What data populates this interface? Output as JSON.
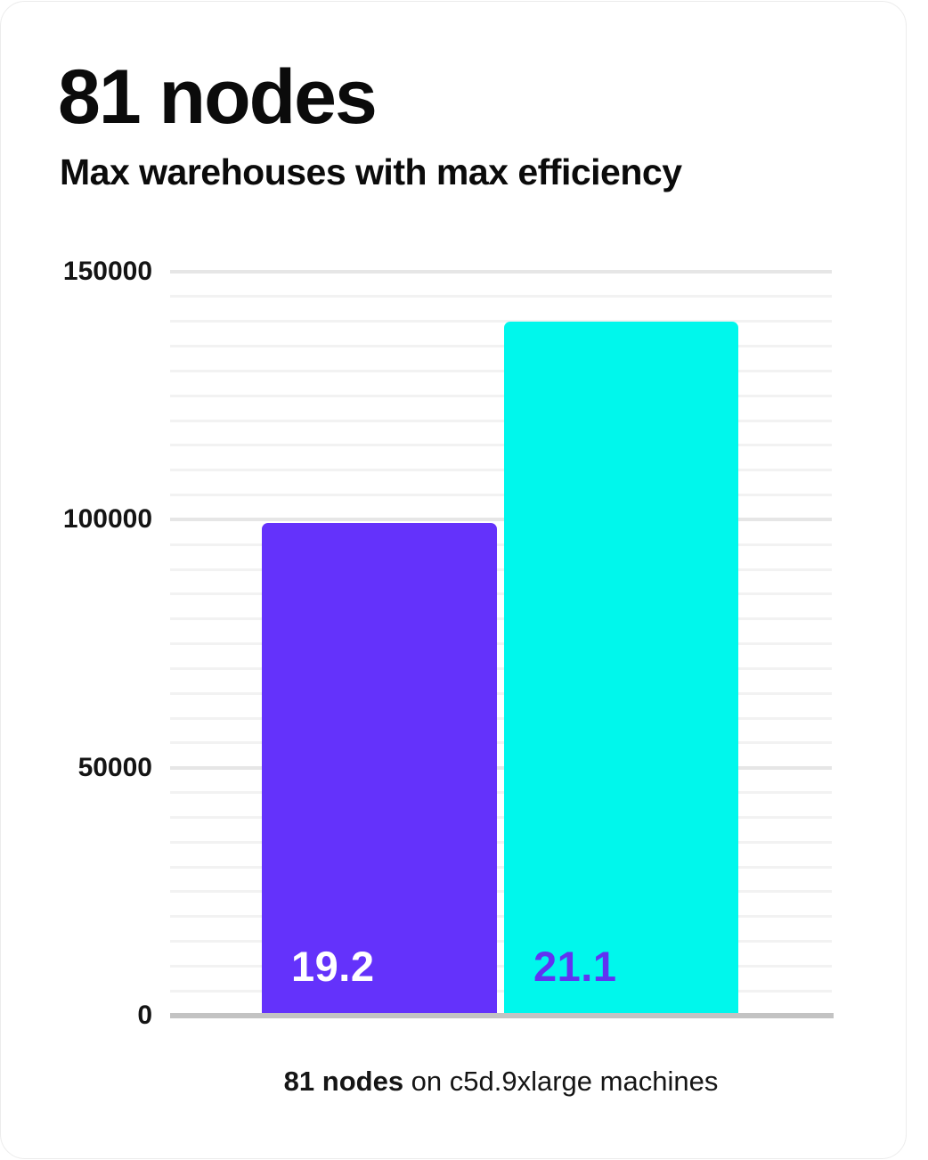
{
  "card": {
    "title": "81 nodes",
    "subtitle": "Max warehouses with max efficiency",
    "caption_bold": "81 nodes",
    "caption_rest": " on c5d.9xlarge machines"
  },
  "colors": {
    "text": "#0b0b0b",
    "bar_purple": "#6432fb",
    "bar_cyan": "#00f7ec",
    "label_on_purple": "#ffffff",
    "label_on_cyan": "#6133f1",
    "grid_minor": "#f2f2f2",
    "grid_major": "#e6e6e6",
    "axis_baseline": "#c3c3c3"
  },
  "chart_data": {
    "type": "bar",
    "title": "81 nodes",
    "subtitle": "Max warehouses with max efficiency",
    "categories": [
      "bar-1",
      "bar-2"
    ],
    "values": [
      99400,
      140000
    ],
    "bar_labels": [
      "19.2",
      "21.1"
    ],
    "bar_colors": [
      "#6432fb",
      "#00f7ec"
    ],
    "bar_label_colors": [
      "#ffffff",
      "#6133f1"
    ],
    "ylim": [
      0,
      150000
    ],
    "yticks": [
      0,
      50000,
      100000,
      150000
    ],
    "ytick_labels": [
      "0",
      "50000",
      "100000",
      "150000"
    ],
    "minor_gridline_step": 5000,
    "grid": true,
    "legend_position": "none",
    "caption": "81 nodes on c5d.9xlarge machines"
  }
}
